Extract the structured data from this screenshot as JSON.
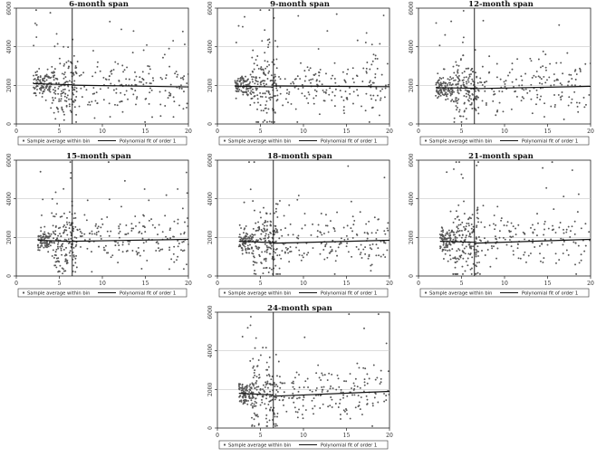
{
  "chart_data": {
    "type": "scatter",
    "xlim": [
      0,
      20
    ],
    "ylim": [
      0,
      6000
    ],
    "x_ticks": [
      0,
      5,
      10,
      15,
      20
    ],
    "y_ticks": [
      0,
      2000,
      4000,
      6000
    ],
    "cutoff_x": 6.5,
    "grid": "horizontal",
    "legend": [
      "Sample average within bin",
      "Polynomial fit of order 1"
    ],
    "panels": [
      {
        "title": "6-month span",
        "x_min": 2.0,
        "fit_left": [
          2090,
          2030
        ],
        "fit_right": [
          2010,
          1920
        ],
        "seed": 11
      },
      {
        "title": "9-month span",
        "x_min": 2.0,
        "fit_left": [
          1960,
          1920
        ],
        "fit_right": [
          1970,
          1930
        ],
        "seed": 23
      },
      {
        "title": "12-month span",
        "x_min": 2.0,
        "fit_left": [
          1880,
          1850
        ],
        "fit_right": [
          1830,
          1950
        ],
        "seed": 37
      },
      {
        "title": "15-month span",
        "x_min": 2.5,
        "fit_left": [
          1850,
          1790
        ],
        "fit_right": [
          1800,
          1900
        ],
        "seed": 41
      },
      {
        "title": "18-month span",
        "x_min": 2.5,
        "fit_left": [
          1800,
          1730
        ],
        "fit_right": [
          1700,
          1850
        ],
        "seed": 53
      },
      {
        "title": "21-month span",
        "x_min": 2.5,
        "fit_left": [
          1800,
          1750
        ],
        "fit_right": [
          1700,
          1900
        ],
        "seed": 67
      },
      {
        "title": "24-month span",
        "x_min": 2.5,
        "fit_left": [
          1800,
          1720
        ],
        "fit_right": [
          1650,
          1900
        ],
        "seed": 79
      }
    ]
  }
}
